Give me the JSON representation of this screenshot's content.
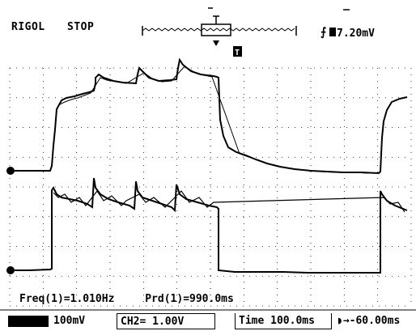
{
  "header": {
    "brand": "RIGOL",
    "run_state": "STOP",
    "trigger_level_text": "7.20mV",
    "trigger_channel_icon": "channel-1-square-icon",
    "trigger_edge_icon": "falling-edge-icon"
  },
  "measurements": {
    "frequency": "Freq(1)=1.010Hz",
    "period": "Prd(1)=990.0ms"
  },
  "footer": {
    "ch1_scale": "100mV",
    "ch2_scale": "CH2= 1.00V",
    "timebase": "Time 100.0ms",
    "trigger_offset": "-60.00ms",
    "trigger_offset_icon": "trigger-position-icon"
  },
  "colors": {
    "trace": "#000000",
    "grid": "#000000",
    "background": "#ffffff"
  }
}
